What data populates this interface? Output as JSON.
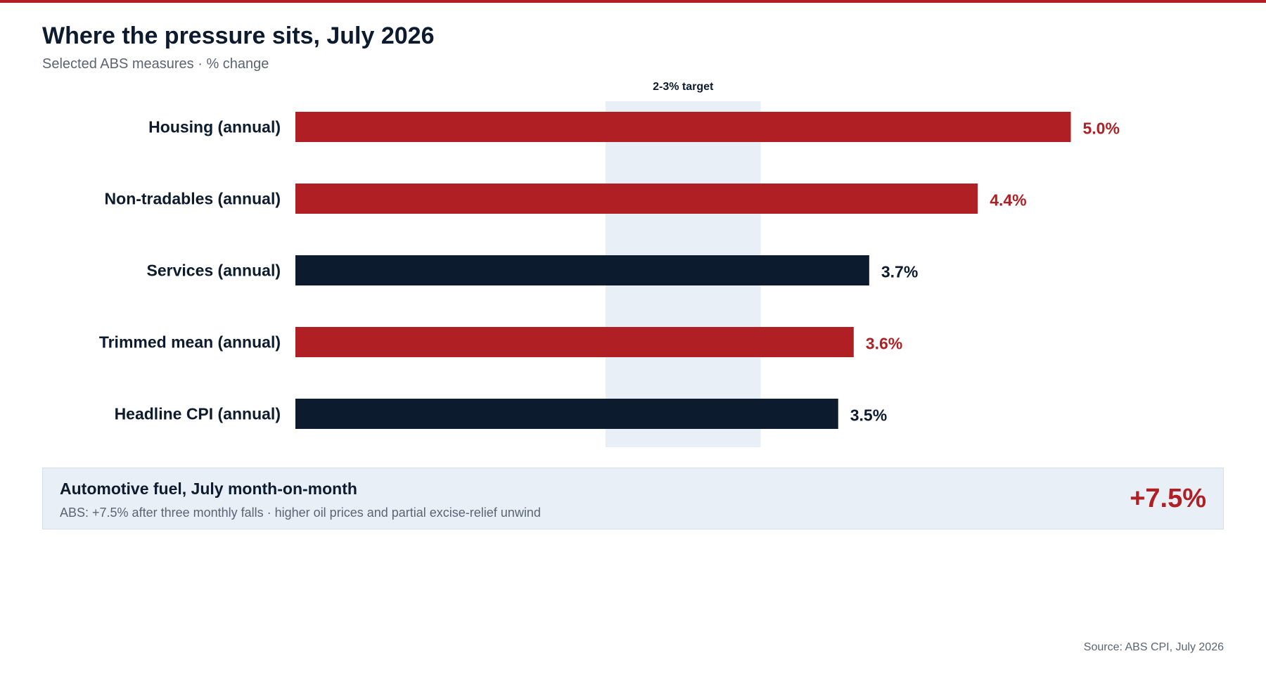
{
  "header": {
    "title": "Where the pressure sits, July 2026",
    "subtitle": "Selected ABS measures · % change"
  },
  "chart_data": {
    "type": "bar",
    "orientation": "horizontal",
    "title": "Where the pressure sits, July 2026",
    "subtitle": "Selected ABS measures · % change",
    "categories": [
      "Housing (annual)",
      "Non-tradables (annual)",
      "Services (annual)",
      "Trimmed mean (annual)",
      "Headline CPI (annual)"
    ],
    "values": [
      5.0,
      4.4,
      3.7,
      3.6,
      3.5
    ],
    "value_labels": [
      "5.0%",
      "4.4%",
      "3.7%",
      "3.6%",
      "3.5%"
    ],
    "highlight": [
      true,
      true,
      false,
      true,
      false
    ],
    "xlim": [
      0,
      6
    ],
    "target_band": {
      "label": "2-3% target",
      "from": 2,
      "to": 3
    },
    "grid": false,
    "legend": "none",
    "colors": {
      "highlight": "#b01f24",
      "base": "#0d1b2e",
      "band": "#e8eff6"
    }
  },
  "callout": {
    "title": "Automotive fuel, July month-on-month",
    "note": "ABS: +7.5% after three monthly falls · higher oil prices and partial excise-relief unwind",
    "value": "+7.5%"
  },
  "footer": {
    "source": "Source: ABS CPI, July 2026"
  }
}
